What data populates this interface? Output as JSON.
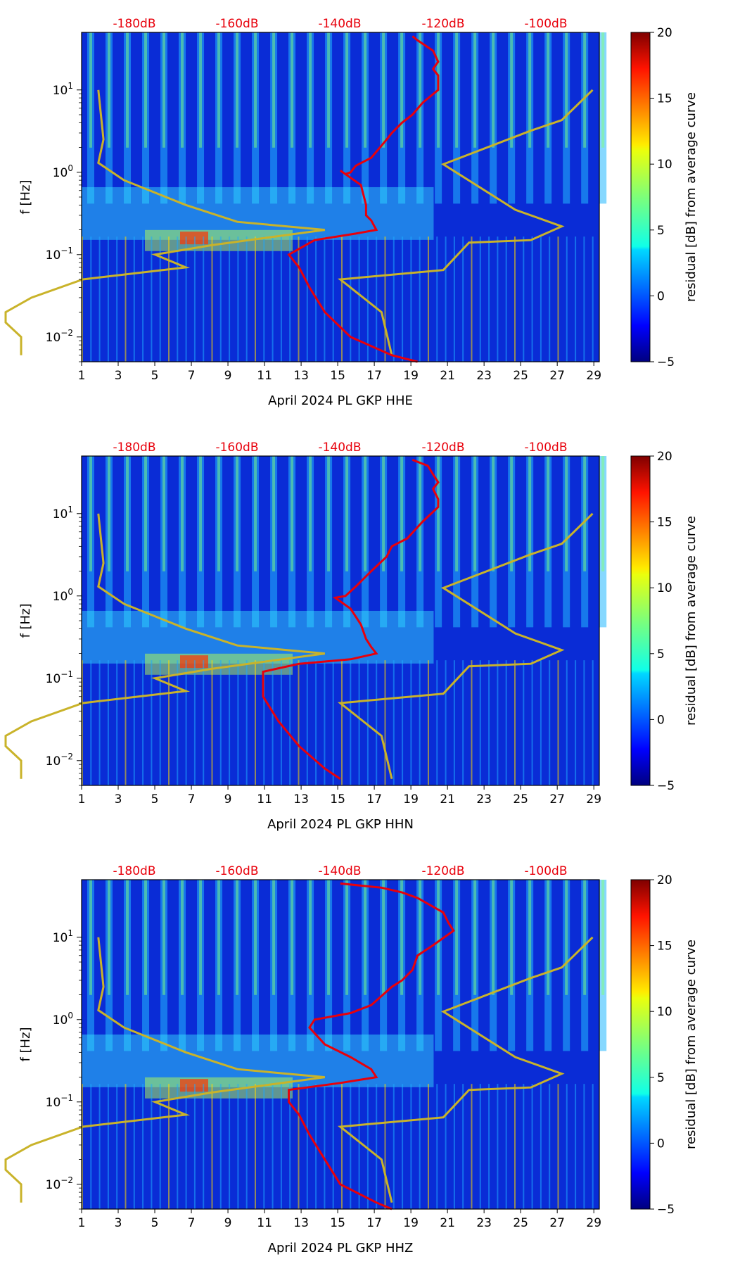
{
  "chart_data": [
    {
      "type": "heatmap",
      "xlabel": "April 2024 PL GKP  HHE",
      "ylabel": "f [Hz]",
      "x_ticks": [
        "1",
        "3",
        "5",
        "7",
        "9",
        "11",
        "13",
        "15",
        "17",
        "19",
        "21",
        "23",
        "25",
        "27",
        "29"
      ],
      "y_ticks": [
        {
          "base": "10",
          "exp": "1"
        },
        {
          "base": "10",
          "exp": "0"
        },
        {
          "base": "10",
          "exp": "−1"
        },
        {
          "base": "10",
          "exp": "−2"
        }
      ],
      "db_ticks": [
        "-180dB",
        "-160dB",
        "-140dB",
        "-120dB",
        "-100dB"
      ],
      "colorbar_label": "residual [dB] from average curve",
      "colorbar_ticks": [
        "20",
        "15",
        "10",
        "5",
        "0",
        "−5"
      ],
      "xlim": [
        1,
        29.3
      ],
      "ylim_hz": [
        0.005,
        50
      ],
      "colorbar_range": [
        -5,
        20
      ],
      "average_curve_db": [
        [
          -126,
          45
        ],
        [
          -125,
          40
        ],
        [
          -122,
          30
        ],
        [
          -121,
          22
        ],
        [
          -122,
          18
        ],
        [
          -121,
          15
        ],
        [
          -121,
          10
        ],
        [
          -124,
          7
        ],
        [
          -126,
          5
        ],
        [
          -128,
          4
        ],
        [
          -130,
          3
        ],
        [
          -131,
          2.5
        ],
        [
          -134,
          1.5
        ],
        [
          -137,
          1.2
        ],
        [
          -138,
          1.0
        ],
        [
          -139,
          0.95
        ],
        [
          -140,
          1.05
        ],
        [
          -136,
          0.7
        ],
        [
          -135,
          0.4
        ],
        [
          -135,
          0.3
        ],
        [
          -134,
          0.26
        ],
        [
          -133,
          0.2
        ],
        [
          -137,
          0.18
        ],
        [
          -145,
          0.15
        ],
        [
          -150,
          0.1
        ],
        [
          -148,
          0.07
        ],
        [
          -146,
          0.04
        ],
        [
          -143,
          0.02
        ],
        [
          -138,
          0.01
        ],
        [
          -130,
          0.006
        ],
        [
          -125,
          0.005
        ]
      ],
      "nlnm_db": [
        [
          -187,
          10
        ],
        [
          -186,
          2.5
        ],
        [
          -187,
          1.3
        ],
        [
          -182,
          0.8
        ],
        [
          -170,
          0.4
        ],
        [
          -160,
          0.25
        ],
        [
          -143,
          0.2
        ],
        [
          -165,
          0.13
        ],
        [
          -176,
          0.1
        ],
        [
          -170,
          0.07
        ],
        [
          -190,
          0.05
        ],
        [
          -200,
          0.03
        ],
        [
          -205,
          0.02
        ],
        [
          -205,
          0.015
        ],
        [
          -202,
          0.01
        ],
        [
          -202,
          0.006
        ]
      ],
      "nhnm_db": [
        [
          -91,
          10
        ],
        [
          -97,
          4.3
        ],
        [
          -103,
          3.2
        ],
        [
          -120,
          1.25
        ],
        [
          -106,
          0.35
        ],
        [
          -97,
          0.22
        ],
        [
          -103,
          0.15
        ],
        [
          -115,
          0.14
        ],
        [
          -120,
          0.065
        ],
        [
          -140,
          0.05
        ],
        [
          -132,
          0.02
        ],
        [
          -130,
          0.006
        ]
      ]
    },
    {
      "type": "heatmap",
      "xlabel": "April 2024 PL GKP  HHN",
      "ylabel": "f [Hz]",
      "x_ticks": [
        "1",
        "3",
        "5",
        "7",
        "9",
        "11",
        "13",
        "15",
        "17",
        "19",
        "21",
        "23",
        "25",
        "27",
        "29"
      ],
      "y_ticks": [
        {
          "base": "10",
          "exp": "1"
        },
        {
          "base": "10",
          "exp": "0"
        },
        {
          "base": "10",
          "exp": "−1"
        },
        {
          "base": "10",
          "exp": "−2"
        }
      ],
      "db_ticks": [
        "-180dB",
        "-160dB",
        "-140dB",
        "-120dB",
        "-100dB"
      ],
      "colorbar_label": "residual [dB] from average curve",
      "colorbar_ticks": [
        "20",
        "15",
        "10",
        "5",
        "0",
        "−5"
      ],
      "xlim": [
        1,
        29.3
      ],
      "ylim_hz": [
        0.005,
        50
      ],
      "colorbar_range": [
        -5,
        20
      ],
      "average_curve_db": [
        [
          -126,
          45
        ],
        [
          -123,
          38
        ],
        [
          -122,
          30
        ],
        [
          -121,
          24
        ],
        [
          -122,
          20
        ],
        [
          -121,
          15
        ],
        [
          -121,
          12
        ],
        [
          -124,
          8
        ],
        [
          -127,
          5
        ],
        [
          -130,
          4
        ],
        [
          -131,
          3
        ],
        [
          -134,
          2
        ],
        [
          -137,
          1.3
        ],
        [
          -139,
          1.0
        ],
        [
          -141,
          0.95
        ],
        [
          -138,
          0.7
        ],
        [
          -136,
          0.45
        ],
        [
          -135,
          0.3
        ],
        [
          -134,
          0.24
        ],
        [
          -133,
          0.2
        ],
        [
          -138,
          0.17
        ],
        [
          -148,
          0.15
        ],
        [
          -155,
          0.12
        ],
        [
          -155,
          0.08
        ],
        [
          -155,
          0.06
        ],
        [
          -152,
          0.03
        ],
        [
          -148,
          0.015
        ],
        [
          -143,
          0.008
        ],
        [
          -140,
          0.006
        ]
      ],
      "nlnm_db": [
        [
          -187,
          10
        ],
        [
          -186,
          2.5
        ],
        [
          -187,
          1.3
        ],
        [
          -182,
          0.8
        ],
        [
          -170,
          0.4
        ],
        [
          -160,
          0.25
        ],
        [
          -143,
          0.2
        ],
        [
          -165,
          0.13
        ],
        [
          -176,
          0.1
        ],
        [
          -170,
          0.07
        ],
        [
          -190,
          0.05
        ],
        [
          -200,
          0.03
        ],
        [
          -205,
          0.02
        ],
        [
          -205,
          0.015
        ],
        [
          -202,
          0.01
        ],
        [
          -202,
          0.006
        ]
      ],
      "nhnm_db": [
        [
          -91,
          10
        ],
        [
          -97,
          4.3
        ],
        [
          -103,
          3.2
        ],
        [
          -120,
          1.25
        ],
        [
          -106,
          0.35
        ],
        [
          -97,
          0.22
        ],
        [
          -103,
          0.15
        ],
        [
          -115,
          0.14
        ],
        [
          -120,
          0.065
        ],
        [
          -140,
          0.05
        ],
        [
          -132,
          0.02
        ],
        [
          -130,
          0.006
        ]
      ]
    },
    {
      "type": "heatmap",
      "xlabel": "April 2024 PL GKP  HHZ",
      "ylabel": "f [Hz]",
      "x_ticks": [
        "1",
        "3",
        "5",
        "7",
        "9",
        "11",
        "13",
        "15",
        "17",
        "19",
        "21",
        "23",
        "25",
        "27",
        "29"
      ],
      "y_ticks": [
        {
          "base": "10",
          "exp": "1"
        },
        {
          "base": "10",
          "exp": "0"
        },
        {
          "base": "10",
          "exp": "−1"
        },
        {
          "base": "10",
          "exp": "−2"
        }
      ],
      "db_ticks": [
        "-180dB",
        "-160dB",
        "-140dB",
        "-120dB",
        "-100dB"
      ],
      "colorbar_label": "residual [dB] from average curve",
      "colorbar_ticks": [
        "20",
        "15",
        "10",
        "5",
        "0",
        "−5"
      ],
      "xlim": [
        1,
        29.3
      ],
      "ylim_hz": [
        0.005,
        50
      ],
      "colorbar_range": [
        -5,
        20
      ],
      "average_curve_db": [
        [
          -140,
          45
        ],
        [
          -132,
          40
        ],
        [
          -128,
          35
        ],
        [
          -125,
          30
        ],
        [
          -120,
          20
        ],
        [
          -119,
          15
        ],
        [
          -118,
          12
        ],
        [
          -122,
          8
        ],
        [
          -125,
          6
        ],
        [
          -126,
          4
        ],
        [
          -128,
          3
        ],
        [
          -130,
          2.5
        ],
        [
          -131,
          2.2
        ],
        [
          -134,
          1.5
        ],
        [
          -138,
          1.2
        ],
        [
          -145,
          1.0
        ],
        [
          -146,
          0.8
        ],
        [
          -143,
          0.5
        ],
        [
          -138,
          0.35
        ],
        [
          -134,
          0.25
        ],
        [
          -133,
          0.2
        ],
        [
          -140,
          0.17
        ],
        [
          -150,
          0.14
        ],
        [
          -150,
          0.1
        ],
        [
          -148,
          0.07
        ],
        [
          -146,
          0.04
        ],
        [
          -143,
          0.02
        ],
        [
          -140,
          0.01
        ],
        [
          -133,
          0.006
        ],
        [
          -130,
          0.005
        ]
      ],
      "nlnm_db": [
        [
          -187,
          10
        ],
        [
          -186,
          2.5
        ],
        [
          -187,
          1.3
        ],
        [
          -182,
          0.8
        ],
        [
          -170,
          0.4
        ],
        [
          -160,
          0.25
        ],
        [
          -143,
          0.2
        ],
        [
          -165,
          0.13
        ],
        [
          -176,
          0.1
        ],
        [
          -170,
          0.07
        ],
        [
          -190,
          0.05
        ],
        [
          -200,
          0.03
        ],
        [
          -205,
          0.02
        ],
        [
          -205,
          0.015
        ],
        [
          -202,
          0.01
        ],
        [
          -202,
          0.006
        ]
      ],
      "nhnm_db": [
        [
          -91,
          10
        ],
        [
          -97,
          4.3
        ],
        [
          -103,
          3.2
        ],
        [
          -120,
          1.25
        ],
        [
          -106,
          0.35
        ],
        [
          -97,
          0.22
        ],
        [
          -103,
          0.15
        ],
        [
          -115,
          0.14
        ],
        [
          -120,
          0.065
        ],
        [
          -140,
          0.05
        ],
        [
          -132,
          0.02
        ],
        [
          -130,
          0.006
        ]
      ]
    }
  ]
}
